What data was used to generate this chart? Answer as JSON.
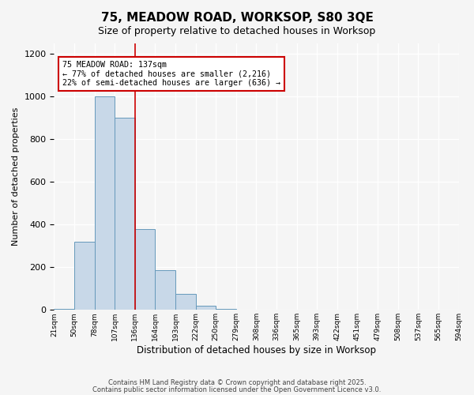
{
  "title": "75, MEADOW ROAD, WORKSOP, S80 3QE",
  "subtitle": "Size of property relative to detached houses in Worksop",
  "xlabel": "Distribution of detached houses by size in Worksop",
  "ylabel": "Number of detached properties",
  "bar_color": "#c8d8e8",
  "bar_edge_color": "#6699bb",
  "background_color": "#f5f5f5",
  "bin_labels": [
    "21sqm",
    "50sqm",
    "78sqm",
    "107sqm",
    "136sqm",
    "164sqm",
    "193sqm",
    "222sqm",
    "250sqm",
    "279sqm",
    "308sqm",
    "336sqm",
    "365sqm",
    "393sqm",
    "422sqm",
    "451sqm",
    "479sqm",
    "508sqm",
    "537sqm",
    "565sqm",
    "594sqm"
  ],
  "bar_heights": [
    5,
    320,
    1000,
    900,
    380,
    185,
    75,
    20,
    5,
    0,
    0,
    0,
    0,
    0,
    0,
    0,
    0,
    0,
    0,
    0
  ],
  "ylim": [
    0,
    1250
  ],
  "yticks": [
    0,
    200,
    400,
    600,
    800,
    1000,
    1200
  ],
  "property_line_x": 4,
  "annotation_title": "75 MEADOW ROAD: 137sqm",
  "annotation_line1": "← 77% of detached houses are smaller (2,216)",
  "annotation_line2": "22% of semi-detached houses are larger (636) →",
  "annotation_box_color": "#ffffff",
  "annotation_box_edge_color": "#cc0000",
  "property_line_color": "#cc0000",
  "footer_line1": "Contains HM Land Registry data © Crown copyright and database right 2025.",
  "footer_line2": "Contains public sector information licensed under the Open Government Licence v3.0."
}
